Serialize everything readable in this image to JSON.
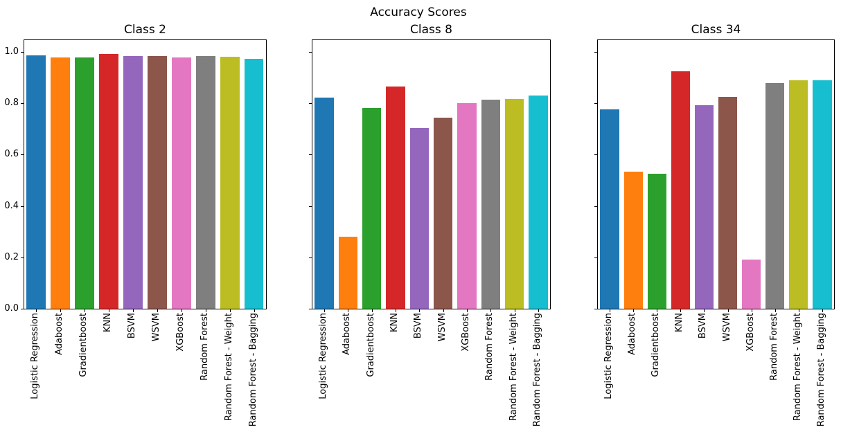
{
  "chart_data": {
    "type": "bar",
    "suptitle": "Accuracy Scores",
    "categories": [
      "Logistic Regression",
      "Adaboost",
      "Gradientboost",
      "KNN",
      "BSVM",
      "WSVM",
      "XGBoost",
      "Random Forest",
      "Random Forest - Weight",
      "Random Forest - Bagging"
    ],
    "bar_colors": [
      "#1f77b4",
      "#ff7f0e",
      "#2ca02c",
      "#d62728",
      "#9467bd",
      "#8c564b",
      "#e377c2",
      "#7f7f7f",
      "#bcbd22",
      "#17becf"
    ],
    "yticks": [
      0.0,
      0.2,
      0.4,
      0.6,
      0.8,
      1.0
    ],
    "ytick_labels": [
      "0.0",
      "0.2",
      "0.4",
      "0.6",
      "0.8",
      "1.0"
    ],
    "ylim": [
      0,
      1.046
    ],
    "grid": false,
    "legend": "none",
    "subplots": [
      {
        "title": "Class 2",
        "show_ytick_labels": true,
        "values": [
          0.986,
          0.98,
          0.978,
          0.991,
          0.985,
          0.985,
          0.978,
          0.983,
          0.982,
          0.973
        ]
      },
      {
        "title": "Class 8",
        "show_ytick_labels": false,
        "values": [
          0.822,
          0.28,
          0.782,
          0.865,
          0.704,
          0.745,
          0.8,
          0.814,
          0.817,
          0.831
        ]
      },
      {
        "title": "Class 34",
        "show_ytick_labels": false,
        "values": [
          0.777,
          0.535,
          0.525,
          0.924,
          0.793,
          0.824,
          0.191,
          0.879,
          0.89,
          0.89
        ]
      }
    ]
  }
}
